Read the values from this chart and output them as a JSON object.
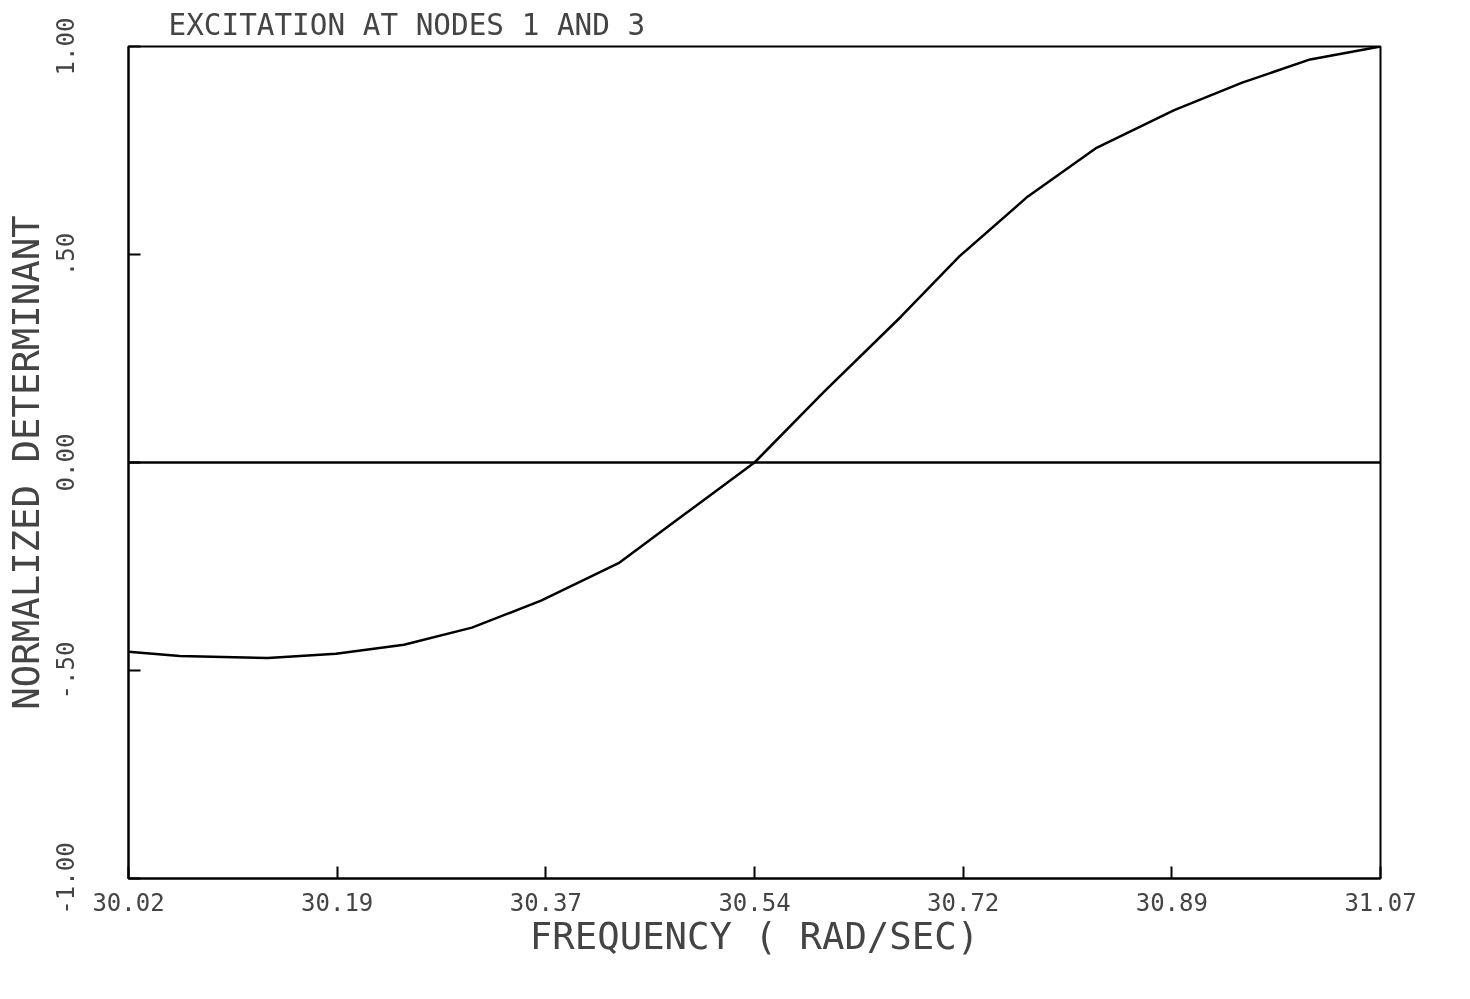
{
  "chart_data": {
    "type": "line",
    "title": "EXCITATION AT NODES 1 AND 3",
    "xlabel": "FREQUENCY ( RAD/SEC)",
    "ylabel": "NORMALIZED DETERMINANT",
    "x": [
      30.02,
      30.063,
      30.137,
      30.194,
      30.251,
      30.308,
      30.366,
      30.431,
      30.488,
      30.545,
      30.603,
      30.668,
      30.717,
      30.774,
      30.831,
      30.897,
      30.954,
      31.011,
      31.07
    ],
    "series": [
      {
        "color": "#000000",
        "values": [
          -0.455,
          -0.465,
          -0.47,
          -0.46,
          -0.438,
          -0.397,
          -0.332,
          -0.242,
          -0.121,
          0.0,
          0.169,
          0.351,
          0.496,
          0.639,
          0.755,
          0.847,
          0.913,
          0.969,
          1.0
        ]
      }
    ],
    "xlim": [
      30.02,
      31.07
    ],
    "ylim": [
      -1.0,
      1.0
    ],
    "xticks": [
      {
        "value": 30.02,
        "label": "30.02"
      },
      {
        "value": 30.195,
        "label": "30.19"
      },
      {
        "value": 30.37,
        "label": "30.37"
      },
      {
        "value": 30.545,
        "label": "30.54"
      },
      {
        "value": 30.72,
        "label": "30.72"
      },
      {
        "value": 30.895,
        "label": "30.89"
      },
      {
        "value": 31.07,
        "label": "31.07"
      }
    ],
    "yticks": [
      {
        "value": -1.0,
        "label": "-1.00"
      },
      {
        "value": -0.5,
        "label": "-.50"
      },
      {
        "value": 0.0,
        "label": "0.00"
      },
      {
        "value": 0.5,
        "label": ".50"
      },
      {
        "value": 1.0,
        "label": "1.00"
      }
    ],
    "ref_lines": [
      {
        "axis": "y",
        "value": 0.0,
        "color": "#000000"
      }
    ],
    "grid": false,
    "marker": "none",
    "line_style": "solid"
  }
}
